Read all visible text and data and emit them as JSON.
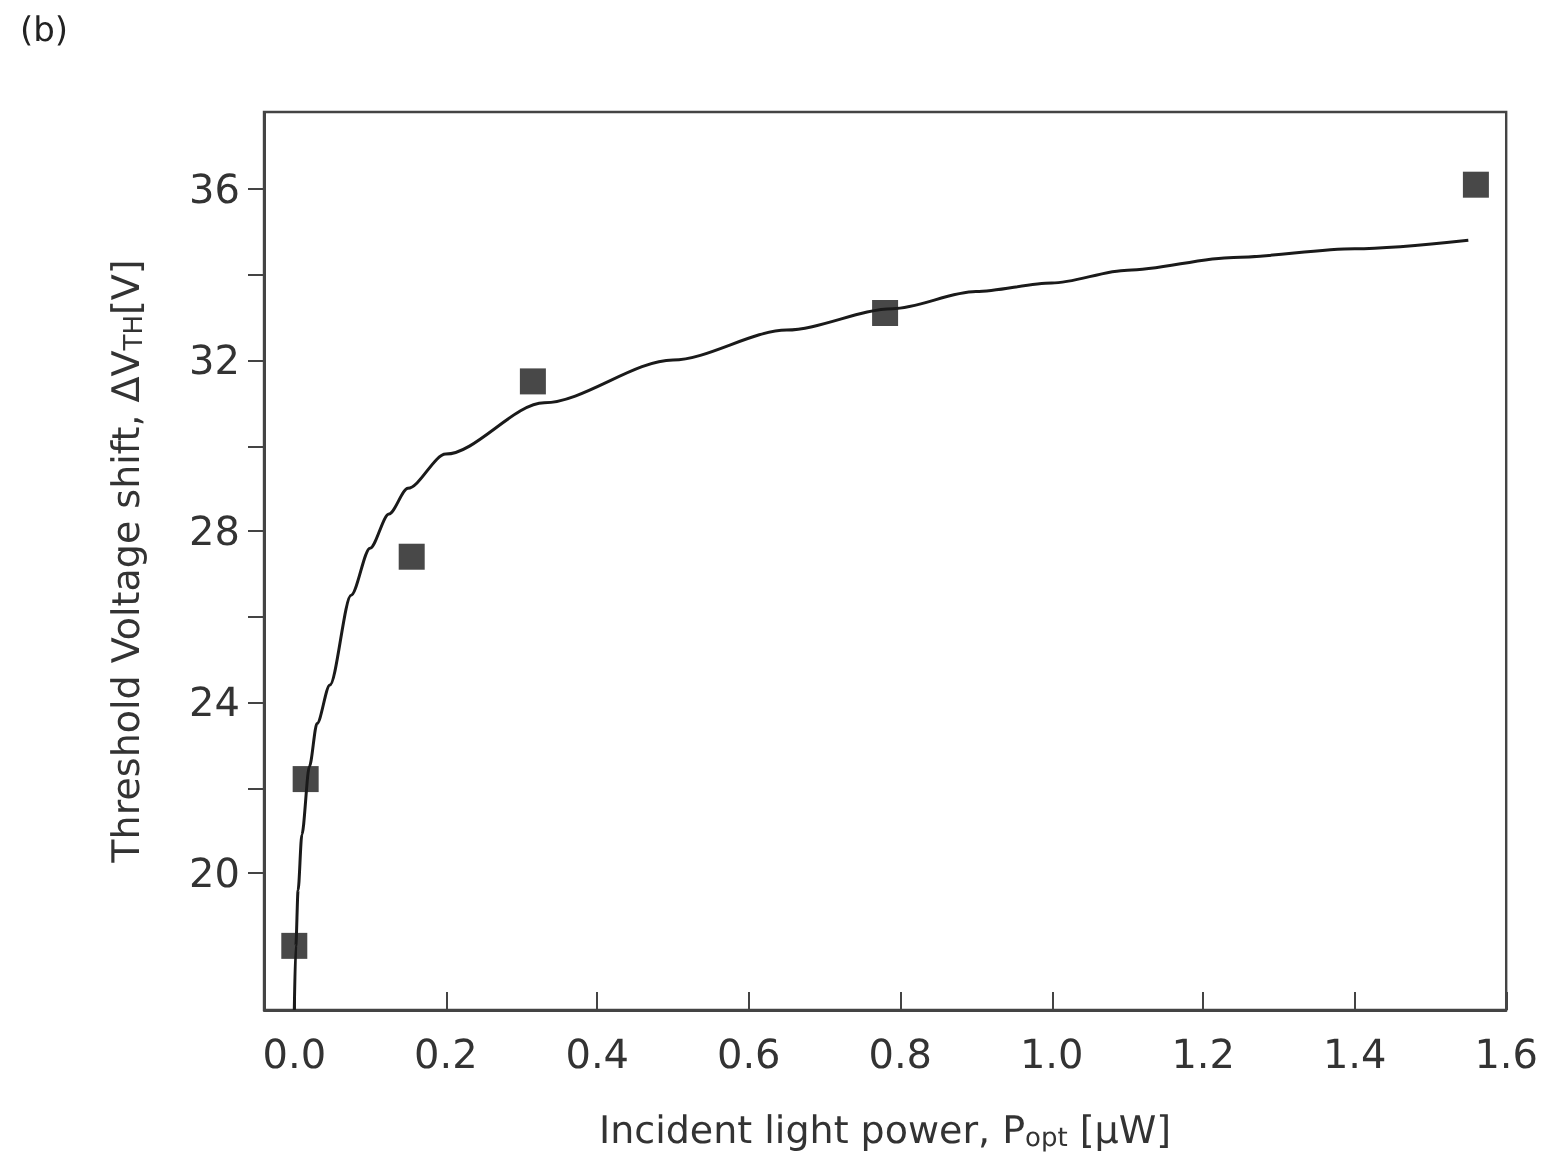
{
  "chart_data": {
    "type": "scatter",
    "title": "(b)",
    "xlabel": "Incident light power, P$_{opt}$ [μW]",
    "ylabel": "Threshold Voltage shift, ΔV$_{TH}$[V]",
    "xlim": [
      -0.04,
      1.6
    ],
    "xticks": [
      {
        "value": 0,
        "label": "0.0"
      },
      0.2,
      0.4,
      0.6,
      0.8,
      {
        "value": 1,
        "label": "1.0"
      },
      1.2,
      1.4,
      1.6
    ],
    "ylim": [
      16.8,
      37.8
    ],
    "yticks": [
      20,
      24,
      28,
      32,
      36
    ],
    "grid": false,
    "series": [
      {
        "marker": "square",
        "color": "#1a1a1a",
        "x": [
          0.0,
          0.015,
          0.155,
          0.315,
          0.78,
          1.56
        ],
        "values": [
          18.3,
          22.2,
          27.4,
          31.5,
          33.1,
          36.1
        ]
      },
      {
        "type": "line",
        "marker": "none",
        "line_style": "solid",
        "color": "#1a1a1a",
        "x": [
          0.0,
          0.002,
          0.005,
          0.01,
          0.02,
          0.03,
          0.047,
          0.075,
          0.1,
          0.125,
          0.15,
          0.2,
          0.33,
          0.5,
          0.65,
          0.79,
          0.9,
          1.0,
          1.1,
          1.24,
          1.4,
          1.55
        ],
        "values": [
          16.8,
          18.3,
          19.6,
          20.9,
          22.5,
          23.5,
          24.4,
          26.5,
          27.6,
          28.4,
          29.0,
          29.8,
          31.0,
          32.0,
          32.7,
          33.2,
          33.6,
          33.8,
          34.1,
          34.4,
          34.6,
          34.8
        ]
      }
    ]
  }
}
